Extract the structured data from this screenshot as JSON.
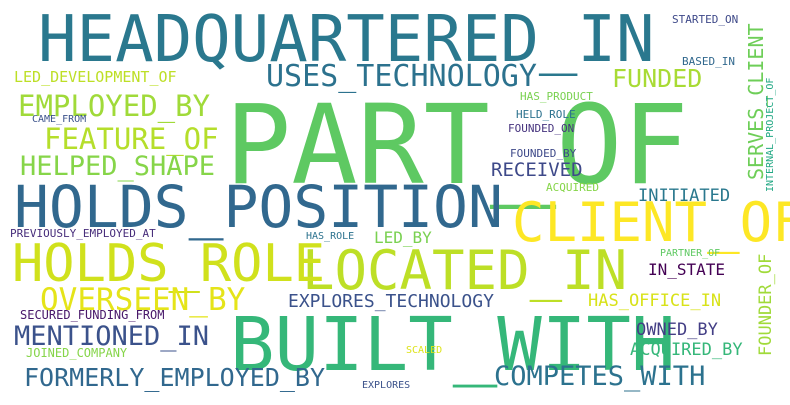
{
  "word_cloud": {
    "words": [
      {
        "text": "PART_OF",
        "color": "#5ec962"
      },
      {
        "text": "HEADQUARTERED_IN",
        "color": "#2a788e"
      },
      {
        "text": "HOLDS_POSITION",
        "color": "#31688e"
      },
      {
        "text": "BUILT_WITH",
        "color": "#35b779"
      },
      {
        "text": "LOCATED_IN",
        "color": "#bddf26"
      },
      {
        "text": "CLIENT_OF",
        "color": "#fde725"
      },
      {
        "text": "HOLDS_ROLE",
        "color": "#d0e11c"
      },
      {
        "text": "USES_TECHNOLOGY",
        "color": "#2c728e"
      },
      {
        "text": "EMPLOYED_BY",
        "color": "#a0da39"
      },
      {
        "text": "FEATURE_OF",
        "color": "#b5de2b"
      },
      {
        "text": "HELPED_SHAPE",
        "color": "#86d549"
      },
      {
        "text": "OVERSEEN_BY",
        "color": "#e5e419"
      },
      {
        "text": "FUNDED",
        "color": "#a8db34"
      },
      {
        "text": "LED_DEVELOPMENT_OF",
        "color": "#bddf26"
      },
      {
        "text": "MENTIONED_IN",
        "color": "#3b528b"
      },
      {
        "text": "FORMERLY_EMPLOYED_BY",
        "color": "#31688e"
      },
      {
        "text": "COMPETES_WITH",
        "color": "#2c728e"
      },
      {
        "text": "EXPLORES_TECHNOLOGY",
        "color": "#3b528b"
      },
      {
        "text": "RECEIVED",
        "color": "#3e4989"
      },
      {
        "text": "INITIATED",
        "color": "#2a788e"
      },
      {
        "text": "IN_STATE",
        "color": "#440154"
      },
      {
        "text": "HAS_OFFICE_IN",
        "color": "#d8e219"
      },
      {
        "text": "OWNED_BY",
        "color": "#433e85"
      },
      {
        "text": "ACQUIRED_BY",
        "color": "#35b779"
      },
      {
        "text": "LED_BY",
        "color": "#7ad151"
      },
      {
        "text": "SERVES_CLIENT",
        "color": "#6ece58"
      },
      {
        "text": "FOUNDER_OF",
        "color": "#a0da39"
      },
      {
        "text": "INTERNAL_PROJECT_OF",
        "color": "#22a884"
      },
      {
        "text": "STARTED_ON",
        "color": "#3e4989"
      },
      {
        "text": "BASED_IN",
        "color": "#31688e"
      },
      {
        "text": "HAS_PRODUCT",
        "color": "#7ad151"
      },
      {
        "text": "HELD_ROLE",
        "color": "#2c728e"
      },
      {
        "text": "FOUNDED_ON",
        "color": "#46337e"
      },
      {
        "text": "FOUNDED_BY",
        "color": "#3e4989"
      },
      {
        "text": "ACQUIRED",
        "color": "#86d549"
      },
      {
        "text": "CAME_FROM",
        "color": "#3b528b"
      },
      {
        "text": "PREVIOUSLY_EMPLOYED_AT",
        "color": "#472d7b"
      },
      {
        "text": "HAS_ROLE",
        "color": "#2c728e"
      },
      {
        "text": "PARTNER_OF",
        "color": "#5ec962"
      },
      {
        "text": "SECURED_FUNDING_FROM",
        "color": "#48186a"
      },
      {
        "text": "JOINED_COMPANY",
        "color": "#86d549"
      },
      {
        "text": "SCALED",
        "color": "#dde318"
      },
      {
        "text": "EXPLORES",
        "color": "#3b528b"
      }
    ]
  }
}
